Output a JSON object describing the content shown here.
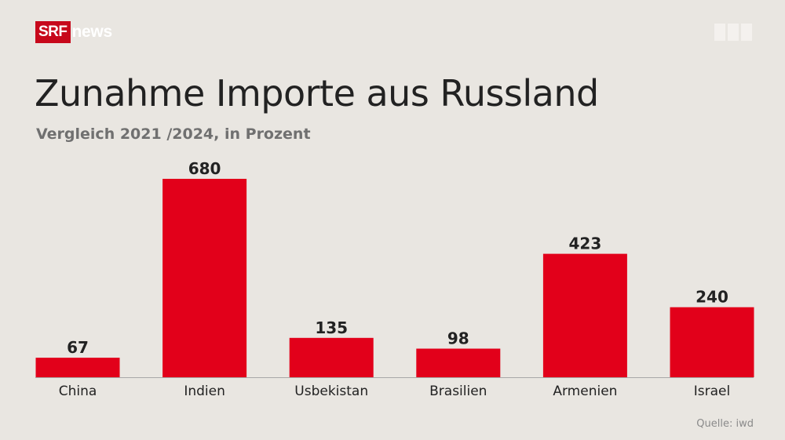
{
  "brand": {
    "logo_srf": "SRF",
    "logo_news": "news"
  },
  "colors": {
    "background": "#e9e6e1",
    "bar": "#e2001a",
    "logo_red": "#c7081b",
    "title": "#222222",
    "subtitle": "#707070",
    "baseline": "#a8a8a8"
  },
  "source": "Quelle: iwd",
  "chart_data": {
    "type": "bar",
    "title": "Zunahme Importe aus Russland",
    "subtitle": "Vergleich 2021 /2024, in Prozent",
    "categories": [
      "China",
      "Indien",
      "Usbekistan",
      "Brasilien",
      "Armenien",
      "Israel"
    ],
    "values": [
      67,
      680,
      135,
      98,
      423,
      240
    ],
    "data_labels": [
      "67",
      "680",
      "135",
      "98",
      "423",
      "240"
    ],
    "ylim": [
      0,
      680
    ],
    "grid": false,
    "legend": "none"
  }
}
